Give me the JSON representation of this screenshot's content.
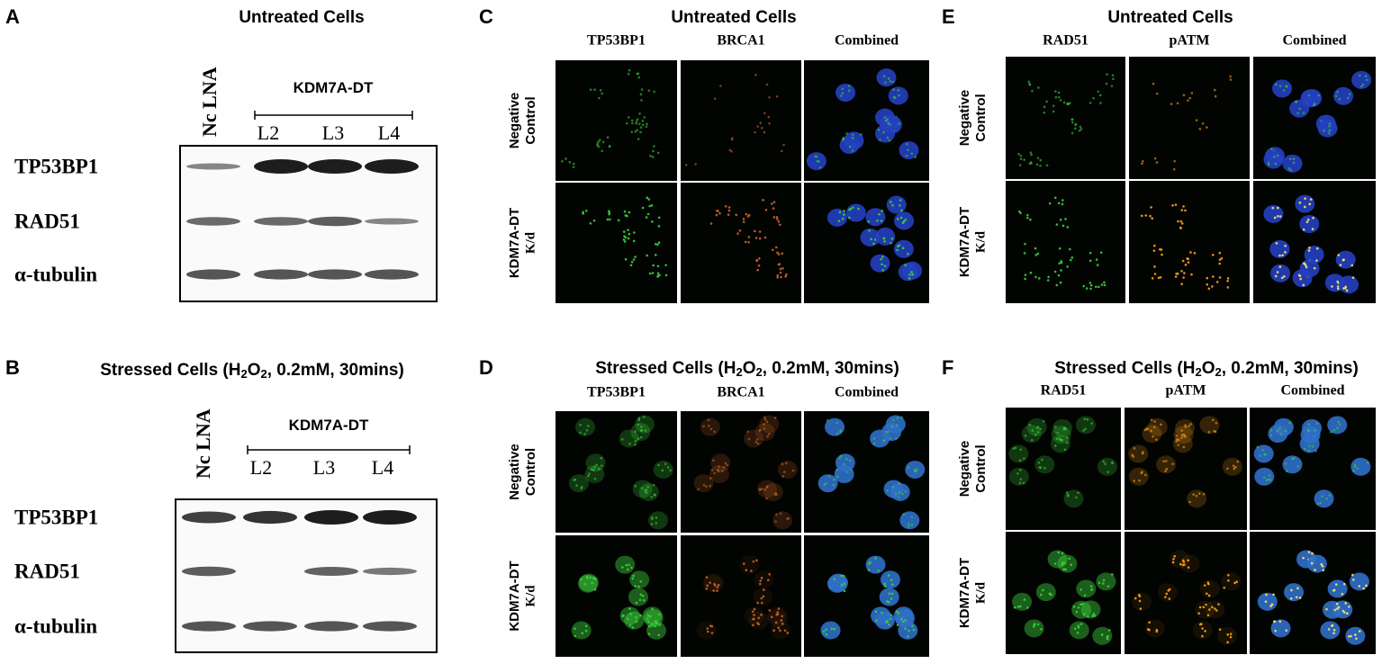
{
  "panels": [
    {
      "label": "A",
      "title": [
        "Untreated Cells"
      ],
      "lanes": [
        "Nc LNA",
        "L2",
        "L3",
        "L4"
      ],
      "group": "KDM7A-DT",
      "rows": [
        "TP53BP1",
        "RAD51",
        "α-tubulin"
      ]
    },
    {
      "label": "B",
      "title": [
        "Stressed Cells (H",
        "2",
        "O",
        "2",
        ", 0.2mM, 30mins)"
      ],
      "lanes": [
        "Nc LNA",
        "L2",
        "L3",
        "L4"
      ],
      "group": "KDM7A-DT",
      "rows": [
        "TP53BP1",
        "RAD51",
        "α-tubulin"
      ]
    },
    {
      "label": "C",
      "title": [
        "Untreated Cells"
      ],
      "columns": [
        "TP53BP1",
        "BRCA1",
        "Combined"
      ],
      "rows": [
        [
          "Negative",
          "Control"
        ],
        [
          "KDM7A-DT",
          "K/d"
        ]
      ]
    },
    {
      "label": "D",
      "title": [
        "Stressed Cells (H",
        "2",
        "O",
        "2",
        ", 0.2mM, 30mins)"
      ],
      "columns": [
        "TP53BP1",
        "BRCA1",
        "Combined"
      ],
      "rows": [
        [
          "Negative",
          "Control"
        ],
        [
          "KDM7A-DT",
          "K/d"
        ]
      ]
    },
    {
      "label": "E",
      "title": [
        "Untreated Cells"
      ],
      "columns": [
        "RAD51",
        "pATM",
        "Combined"
      ],
      "rows": [
        [
          "Negative",
          "Control"
        ],
        [
          "KDM7A-DT",
          "K/d"
        ]
      ]
    },
    {
      "label": "F",
      "title": [
        "Stressed Cells (H",
        "2",
        "O",
        "2",
        ", 0.2mM, 30mins)"
      ],
      "columns": [
        "RAD51",
        "pATM",
        "Combined"
      ],
      "rows": [
        [
          "Negative",
          "Control"
        ],
        [
          "KDM7A-DT",
          "K/d"
        ]
      ]
    }
  ]
}
